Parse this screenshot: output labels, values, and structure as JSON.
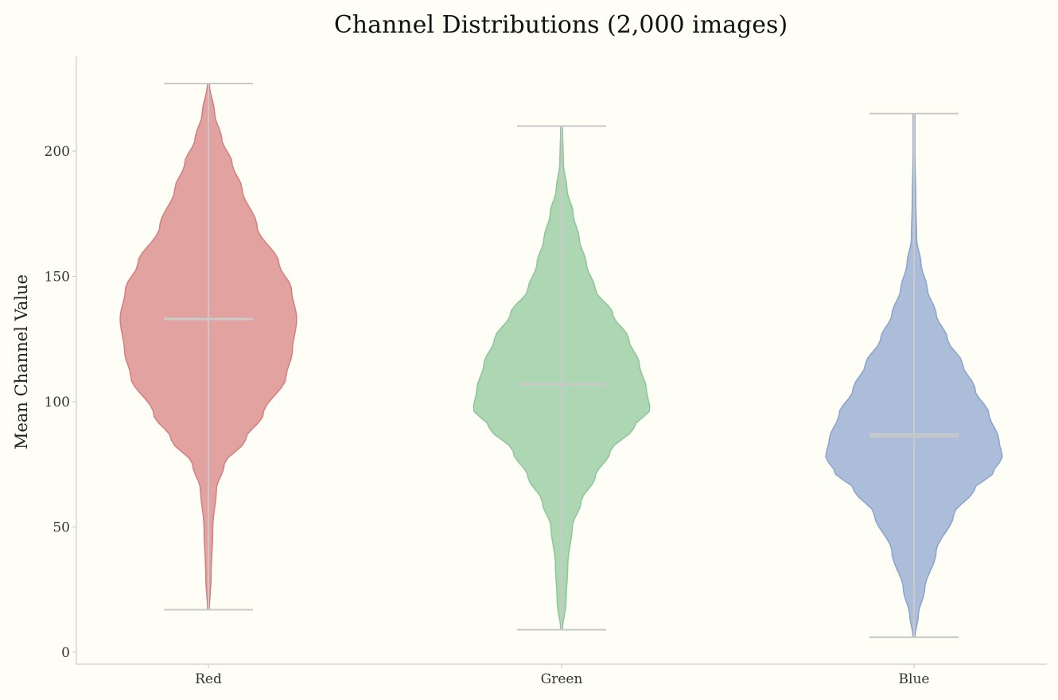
{
  "chart_data": {
    "type": "violin",
    "title": "Channel Distributions  (2,000 images)",
    "xlabel": "",
    "ylabel": "Mean Channel Value",
    "ylim": [
      -5,
      240
    ],
    "yticks": [
      0,
      50,
      100,
      150,
      200
    ],
    "ytick_labels": [
      "0",
      "50",
      "100",
      "150",
      "200"
    ],
    "grid": false,
    "categories": [
      "Red",
      "Green",
      "Blue"
    ],
    "series": [
      {
        "name": "Red",
        "color": "#d57e7e",
        "min": 17,
        "max": 227,
        "median": 133,
        "density_profile": [
          [
            17,
            0.01
          ],
          [
            30,
            0.03
          ],
          [
            50,
            0.05
          ],
          [
            65,
            0.09
          ],
          [
            75,
            0.18
          ],
          [
            85,
            0.42
          ],
          [
            95,
            0.62
          ],
          [
            110,
            0.88
          ],
          [
            120,
            0.95
          ],
          [
            133,
            1.0
          ],
          [
            145,
            0.94
          ],
          [
            155,
            0.8
          ],
          [
            170,
            0.55
          ],
          [
            185,
            0.38
          ],
          [
            195,
            0.27
          ],
          [
            205,
            0.15
          ],
          [
            215,
            0.07
          ],
          [
            227,
            0.01
          ]
        ]
      },
      {
        "name": "Green",
        "color": "#8dc699",
        "min": 9,
        "max": 210,
        "median": 107,
        "density_profile": [
          [
            9,
            0.01
          ],
          [
            20,
            0.05
          ],
          [
            35,
            0.07
          ],
          [
            50,
            0.12
          ],
          [
            60,
            0.22
          ],
          [
            70,
            0.38
          ],
          [
            80,
            0.55
          ],
          [
            90,
            0.82
          ],
          [
            97,
            1.0
          ],
          [
            105,
            0.96
          ],
          [
            115,
            0.88
          ],
          [
            125,
            0.76
          ],
          [
            135,
            0.58
          ],
          [
            145,
            0.38
          ],
          [
            155,
            0.28
          ],
          [
            165,
            0.2
          ],
          [
            175,
            0.13
          ],
          [
            185,
            0.06
          ],
          [
            195,
            0.02
          ],
          [
            210,
            0.01
          ]
        ]
      },
      {
        "name": "Blue",
        "color": "#8ba4cc",
        "min": 6,
        "max": 215,
        "median": 87,
        "mean": 86,
        "density_profile": [
          [
            6,
            0.01
          ],
          [
            15,
            0.05
          ],
          [
            25,
            0.12
          ],
          [
            40,
            0.25
          ],
          [
            55,
            0.45
          ],
          [
            65,
            0.68
          ],
          [
            72,
            0.9
          ],
          [
            78,
            1.0
          ],
          [
            85,
            0.96
          ],
          [
            95,
            0.85
          ],
          [
            105,
            0.69
          ],
          [
            115,
            0.55
          ],
          [
            125,
            0.38
          ],
          [
            135,
            0.25
          ],
          [
            145,
            0.15
          ],
          [
            155,
            0.08
          ],
          [
            165,
            0.03
          ],
          [
            180,
            0.02
          ],
          [
            200,
            0.01
          ],
          [
            215,
            0.01
          ]
        ]
      }
    ]
  }
}
